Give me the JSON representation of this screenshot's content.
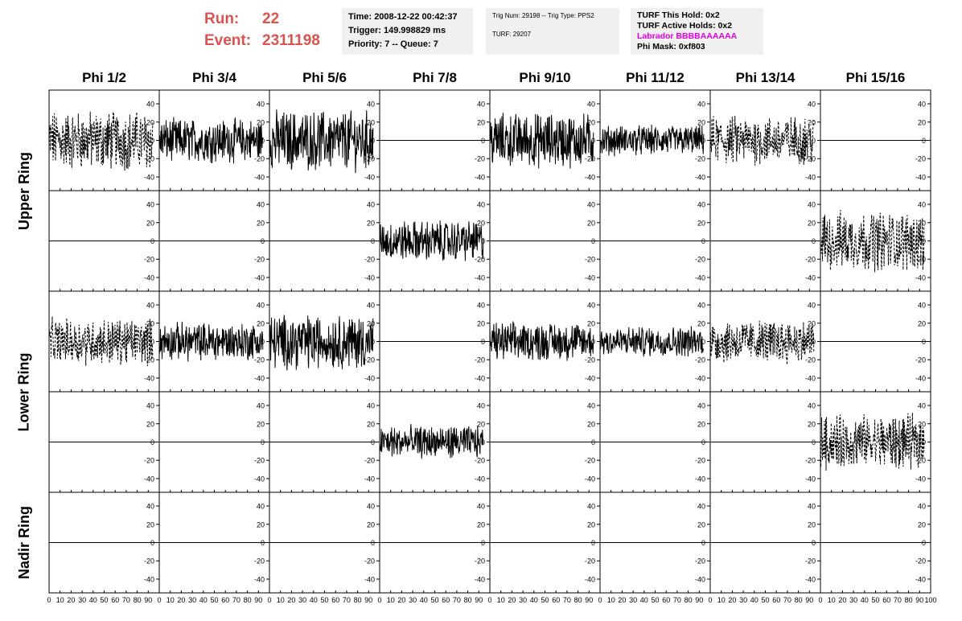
{
  "run": {
    "run_label": "Run:",
    "run_value": "22",
    "event_label": "Event:",
    "event_value": "2311198"
  },
  "info_time": {
    "time": "Time: 2008-12-22 00:42:37",
    "trigger": "Trigger: 149.998829 ms",
    "priority": "Priority: 7 -- Queue: 7"
  },
  "info_trig": {
    "trig": "Trig Num: 29198 -- Trig Type: PPS2",
    "turf": "TURF: 29207"
  },
  "info_turf": {
    "this_hold": "TURF This Hold: 0x2",
    "active_holds": "TURF Active Holds: 0x2",
    "labrador": "Labrador BBBBAAAAAA",
    "phi_mask": "Phi Mask: 0xf803"
  },
  "columns": [
    "Phi 1/2",
    "Phi 3/4",
    "Phi 5/6",
    "Phi 7/8",
    "Phi 9/10",
    "Phi 11/12",
    "Phi 13/14",
    "Phi 15/16"
  ],
  "rings": [
    "Upper Ring",
    "Lower Ring",
    "Nadir Ring"
  ],
  "colors": {
    "labrador": "#e200e2",
    "run": "#d9534f",
    "info_bg": "#f0f0f0"
  },
  "chart_data": {
    "type": "line",
    "xlim": [
      0,
      100
    ],
    "ylim": [
      -55,
      55
    ],
    "x_ticks": [
      0,
      10,
      20,
      30,
      40,
      50,
      60,
      70,
      80,
      90,
      100
    ],
    "y_ticks": [
      -40,
      -20,
      0,
      20,
      40
    ],
    "rows": [
      {
        "ring": "Upper Ring",
        "channels": [
          {
            "col": "Phi 1/2",
            "style": "dashed",
            "amplitude": 22
          },
          {
            "col": "Phi 3/4",
            "style": "solid",
            "amplitude": 16
          },
          {
            "col": "Phi 5/6",
            "style": "solid",
            "amplitude": 22
          },
          {
            "col": "Phi 7/8",
            "style": "flat",
            "amplitude": 0
          },
          {
            "col": "Phi 9/10",
            "style": "solid",
            "amplitude": 20
          },
          {
            "col": "Phi 11/12",
            "style": "solid",
            "amplitude": 11
          },
          {
            "col": "Phi 13/14",
            "style": "dashed",
            "amplitude": 18
          },
          {
            "col": "Phi 15/16",
            "style": "flat",
            "amplitude": 0
          }
        ]
      },
      {
        "ring": "Upper Ring",
        "channels": [
          {
            "col": "Phi 1/2",
            "style": "flat",
            "amplitude": 0
          },
          {
            "col": "Phi 3/4",
            "style": "flat",
            "amplitude": 0
          },
          {
            "col": "Phi 5/6",
            "style": "flat",
            "amplitude": 0
          },
          {
            "col": "Phi 7/8",
            "style": "solid",
            "amplitude": 15
          },
          {
            "col": "Phi 9/10",
            "style": "flat",
            "amplitude": 0
          },
          {
            "col": "Phi 11/12",
            "style": "flat",
            "amplitude": 0
          },
          {
            "col": "Phi 13/14",
            "style": "flat",
            "amplitude": 0
          },
          {
            "col": "Phi 15/16",
            "style": "dashed",
            "amplitude": 22
          }
        ]
      },
      {
        "ring": "Lower Ring",
        "channels": [
          {
            "col": "Phi 1/2",
            "style": "dashed",
            "amplitude": 17
          },
          {
            "col": "Phi 3/4",
            "style": "solid",
            "amplitude": 14
          },
          {
            "col": "Phi 5/6",
            "style": "solid",
            "amplitude": 20
          },
          {
            "col": "Phi 7/8",
            "style": "flat",
            "amplitude": 0
          },
          {
            "col": "Phi 9/10",
            "style": "solid",
            "amplitude": 14
          },
          {
            "col": "Phi 11/12",
            "style": "solid",
            "amplitude": 11
          },
          {
            "col": "Phi 13/14",
            "style": "dashed",
            "amplitude": 16
          },
          {
            "col": "Phi 15/16",
            "style": "flat",
            "amplitude": 0
          }
        ]
      },
      {
        "ring": "Lower Ring",
        "channels": [
          {
            "col": "Phi 1/2",
            "style": "flat",
            "amplitude": 0
          },
          {
            "col": "Phi 3/4",
            "style": "flat",
            "amplitude": 0
          },
          {
            "col": "Phi 5/6",
            "style": "flat",
            "amplitude": 0
          },
          {
            "col": "Phi 7/8",
            "style": "solid",
            "amplitude": 12
          },
          {
            "col": "Phi 9/10",
            "style": "flat",
            "amplitude": 0
          },
          {
            "col": "Phi 11/12",
            "style": "flat",
            "amplitude": 0
          },
          {
            "col": "Phi 13/14",
            "style": "flat",
            "amplitude": 0
          },
          {
            "col": "Phi 15/16",
            "style": "dashed",
            "amplitude": 20
          }
        ]
      },
      {
        "ring": "Nadir Ring",
        "channels": [
          {
            "col": "Phi 1/2",
            "style": "flat",
            "amplitude": 0
          },
          {
            "col": "Phi 3/4",
            "style": "flat",
            "amplitude": 0
          },
          {
            "col": "Phi 5/6",
            "style": "flat",
            "amplitude": 0
          },
          {
            "col": "Phi 7/8",
            "style": "flat",
            "amplitude": 0
          },
          {
            "col": "Phi 9/10",
            "style": "flat",
            "amplitude": 0
          },
          {
            "col": "Phi 11/12",
            "style": "flat",
            "amplitude": 0
          },
          {
            "col": "Phi 13/14",
            "style": "flat",
            "amplitude": 0
          },
          {
            "col": "Phi 15/16",
            "style": "flat",
            "amplitude": 0
          }
        ]
      }
    ]
  }
}
